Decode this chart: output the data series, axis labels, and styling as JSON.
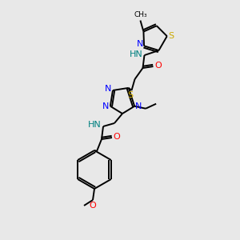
{
  "bg_color": "#e8e8e8",
  "colors": {
    "N": "#0000ff",
    "S": "#ccaa00",
    "O": "#ff0000",
    "HN": "#008080",
    "C": "#000000"
  },
  "bond_lw": 1.4
}
